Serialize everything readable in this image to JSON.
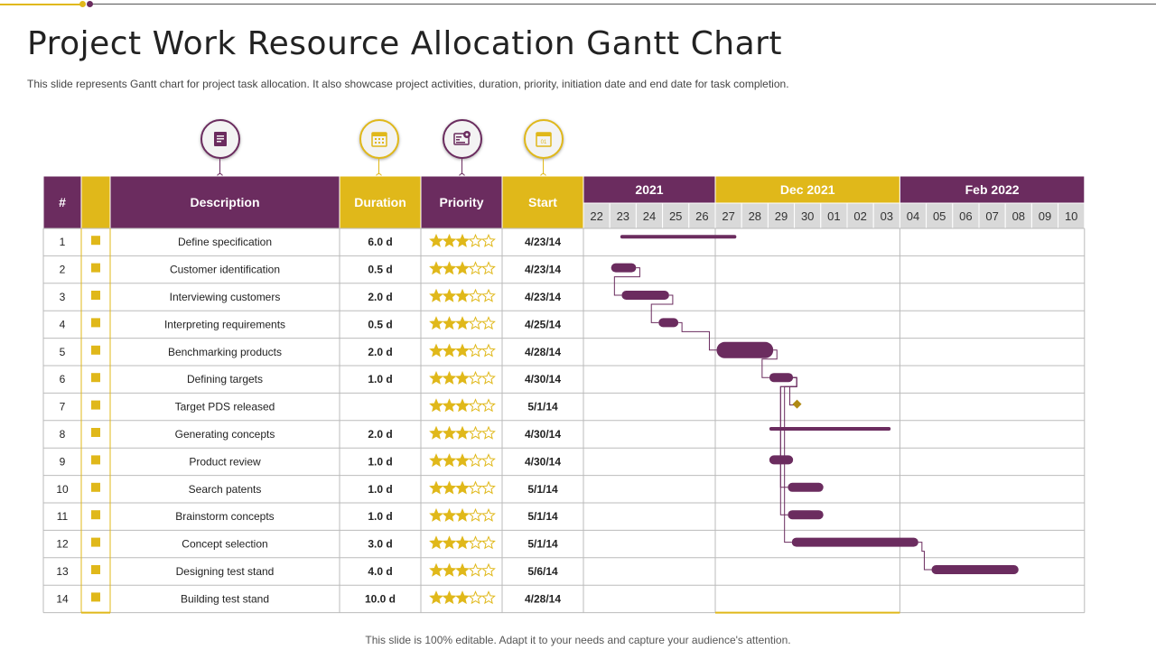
{
  "title": "Project Work Resource Allocation Gantt Chart",
  "subtitle": "This slide represents Gantt chart for project task allocation. It also showcase project activities, duration, priority, initiation date and end date for task completion.",
  "footer": "This slide is 100% editable. Adapt it to your needs and capture your audience's attention.",
  "colors": {
    "purple": "#6b2c5f",
    "gold": "#e0b81a",
    "grey": "#d9d9d9"
  },
  "icons": [
    "document-icon",
    "calendar-grid-icon",
    "dashboard-settings-icon",
    "calendar-01-icon"
  ],
  "table": {
    "headers": {
      "num": "#",
      "description": "Description",
      "duration": "Duration",
      "priority": "Priority",
      "start": "Start"
    }
  },
  "chart_data": {
    "type": "table",
    "months": [
      {
        "label": "2021",
        "days": [
          "22",
          "23",
          "24",
          "25",
          "26"
        ]
      },
      {
        "label": "Dec 2021",
        "days": [
          "27",
          "28",
          "29",
          "30",
          "01",
          "02",
          "03"
        ]
      },
      {
        "label": "Feb 2022",
        "days": [
          "04",
          "05",
          "06",
          "07",
          "08",
          "09",
          "10"
        ]
      }
    ],
    "rows": [
      {
        "num": "1",
        "description": "Define specification",
        "duration": "6.0 d",
        "priority": 3,
        "start": "4/23/14",
        "bar": {
          "from": 1.4,
          "to": 5.8,
          "kind": "thin"
        }
      },
      {
        "num": "2",
        "description": "Customer identification",
        "duration": "0.5 d",
        "priority": 3,
        "start": "4/23/14",
        "bar": {
          "from": 1.05,
          "to": 2.0,
          "kind": "pill"
        }
      },
      {
        "num": "3",
        "description": "Interviewing customers",
        "duration": "2.0 d",
        "priority": 3,
        "start": "4/23/14",
        "bar": {
          "from": 1.45,
          "to": 3.25,
          "kind": "pill"
        }
      },
      {
        "num": "4",
        "description": "Interpreting requirements",
        "duration": "0.5 d",
        "priority": 3,
        "start": "4/25/14",
        "bar": {
          "from": 2.85,
          "to": 3.6,
          "kind": "pill"
        }
      },
      {
        "num": "5",
        "description": "Benchmarking products",
        "duration": "2.0 d",
        "priority": 3,
        "start": "4/28/14",
        "bar": {
          "from": 5.05,
          "to": 7.2,
          "kind": "pill"
        }
      },
      {
        "num": "6",
        "description": "Defining targets",
        "duration": "1.0 d",
        "priority": 3,
        "start": "4/30/14",
        "bar": {
          "from": 7.05,
          "to": 7.95,
          "kind": "pill"
        }
      },
      {
        "num": "7",
        "description": "Target PDS released",
        "duration": "",
        "priority": 3,
        "start": "5/1/14",
        "bar": {
          "from": 8.1,
          "to": 8.1,
          "kind": "milestone"
        }
      },
      {
        "num": "8",
        "description": "Generating concepts",
        "duration": "2.0 d",
        "priority": 3,
        "start": "4/30/14",
        "bar": {
          "from": 7.05,
          "to": 11.65,
          "kind": "thin"
        }
      },
      {
        "num": "9",
        "description": "Product review",
        "duration": "1.0 d",
        "priority": 3,
        "start": "4/30/14",
        "bar": {
          "from": 7.05,
          "to": 7.95,
          "kind": "pill"
        }
      },
      {
        "num": "10",
        "description": "Search patents",
        "duration": "1.0 d",
        "priority": 3,
        "start": "5/1/14",
        "bar": {
          "from": 7.75,
          "to": 9.1,
          "kind": "pill"
        }
      },
      {
        "num": "11",
        "description": "Brainstorm concepts",
        "duration": "1.0 d",
        "priority": 3,
        "start": "5/1/14",
        "bar": {
          "from": 7.75,
          "to": 9.1,
          "kind": "pill"
        }
      },
      {
        "num": "12",
        "description": "Concept selection",
        "duration": "3.0 d",
        "priority": 3,
        "start": "5/1/14",
        "bar": {
          "from": 7.9,
          "to": 12.7,
          "kind": "pill"
        }
      },
      {
        "num": "13",
        "description": "Designing test stand",
        "duration": "4.0 d",
        "priority": 3,
        "start": "5/6/14",
        "bar": {
          "from": 13.2,
          "to": 16.5,
          "kind": "pill"
        }
      },
      {
        "num": "14",
        "description": "Building test stand",
        "duration": "10.0 d",
        "priority": 3,
        "start": "4/28/14",
        "bar": null
      }
    ],
    "dependencies": [
      [
        2,
        3
      ],
      [
        3,
        4
      ],
      [
        4,
        5
      ],
      [
        5,
        6
      ],
      [
        6,
        7
      ],
      [
        6,
        10
      ],
      [
        6,
        11
      ],
      [
        6,
        12
      ],
      [
        12,
        13
      ]
    ]
  }
}
